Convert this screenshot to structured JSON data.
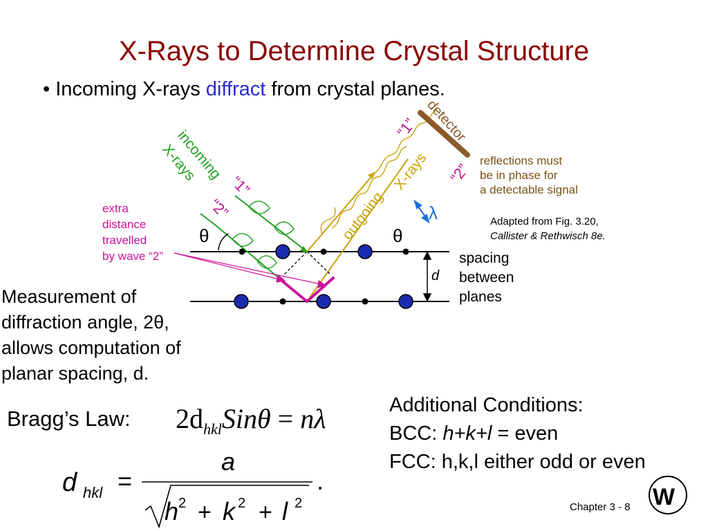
{
  "slide": {
    "title": "X-Rays to Determine Crystal Structure",
    "bullet": {
      "marker": "•",
      "pre": "Incoming X-rays ",
      "accent": "diffract",
      "post": " from crystal planes."
    }
  },
  "diagram": {
    "incoming_line1": "incoming",
    "incoming_line2": "X-rays",
    "outgoing_word": "outgoing",
    "outgoing_xrays": "X-rays",
    "ray1_label": "“1”",
    "ray2_label": "“2”",
    "detector_label": "detector",
    "theta": "θ",
    "lambda": "λ",
    "d": "d",
    "extra_distance": [
      "extra",
      "distance",
      "travelled",
      "by wave “2”"
    ],
    "reflection_note": [
      "reflections must",
      "be in phase for",
      "a detectable signal"
    ],
    "adapted": [
      "Adapted from Fig. 3.20,",
      "Callister & Rethwisch 8e."
    ],
    "spacing": [
      "spacing",
      "between",
      "planes"
    ],
    "colors": {
      "incoming": "#22a022",
      "outgoing": "#c8a20a",
      "detector": "#8b5a2b",
      "extra": "#cc1199",
      "lambda": "#1d6fe0",
      "atom_large": "#1a2bb0",
      "title": "#8b0000"
    }
  },
  "measurement": [
    "Measurement of",
    "diffraction angle, 2θ,",
    "allows computation of",
    "planar spacing, d."
  ],
  "bragg": {
    "label": "Bragg’s Law:",
    "lhs": "2d",
    "sub": "hkl",
    "sin": "Sin",
    "theta": "θ",
    "eq": " = ",
    "rhs": "nλ"
  },
  "dhkl_formula": {
    "d": "d",
    "sub": "hkl",
    "eq": "=",
    "numerator": "a",
    "h": "h",
    "k": "k",
    "l": "l",
    "exp": "2",
    "plus": "+",
    "period": "."
  },
  "conditions": {
    "heading": "Additional Conditions:",
    "bcc_pre": "BCC: ",
    "bcc_expr": "h+k+l",
    "bcc_eq": " = ",
    "bcc_post": "even",
    "fcc": "FCC: h,k,l either odd or even"
  },
  "footer": {
    "chapter": "Chapter 3 -",
    "page": "8",
    "logo_icon": "wiley-logo-icon"
  }
}
